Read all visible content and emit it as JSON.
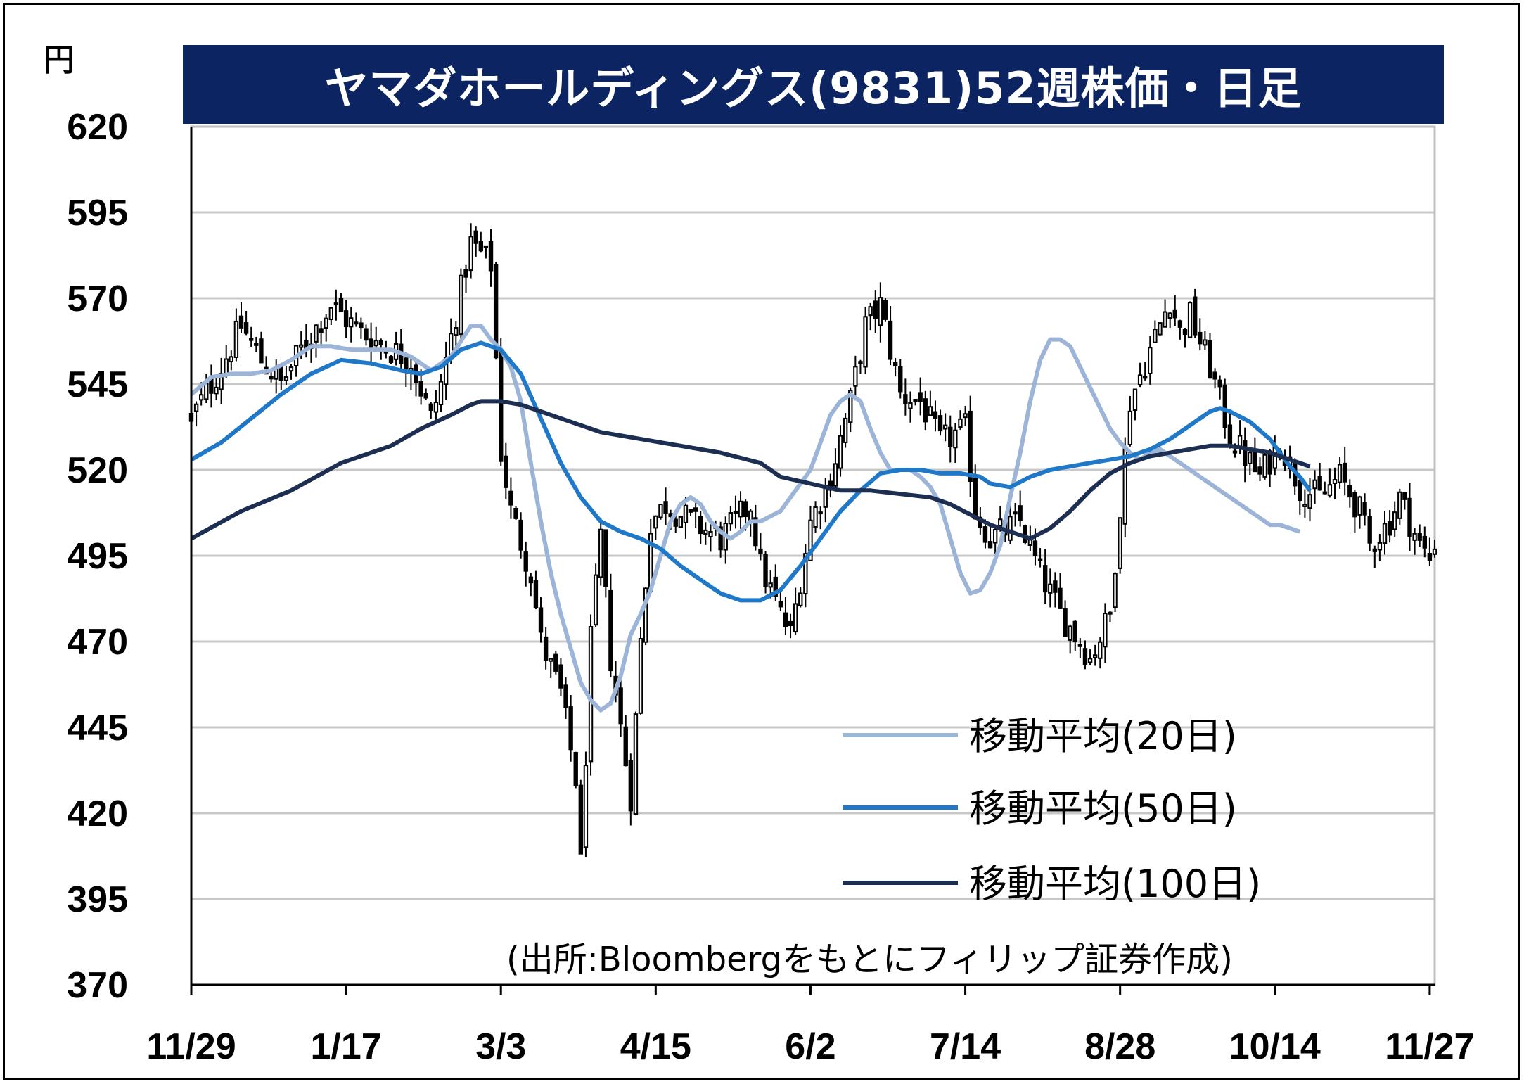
{
  "title": "ヤマダホールディングス(9831)52週株価・日足",
  "unit": "円",
  "source": "(出所:Bloombergをもとにフィリップ証券作成)",
  "colors": {
    "banner": "#0c2461",
    "ma20": "#9bb4d8",
    "ma50": "#1f78c8",
    "ma100": "#1c2e52",
    "candle": "#000000",
    "grid": "#c8c8c8"
  },
  "chart_data": {
    "type": "candlestick",
    "title": "ヤマダホールディングス(9831)52週株価・日足",
    "ylabel": "円",
    "ylim": [
      370,
      620
    ],
    "yticks": [
      620,
      595,
      570,
      545,
      520,
      495,
      470,
      445,
      420,
      395,
      370
    ],
    "xticks": [
      "11/29",
      "1/17",
      "3/3",
      "4/15",
      "6/2",
      "7/14",
      "8/28",
      "10/14",
      "11/27"
    ],
    "trading_days": 250,
    "xtick_days": [
      0,
      31,
      62,
      93,
      124,
      155,
      186,
      217,
      248
    ],
    "legend": [
      {
        "key": "ma20",
        "label": "移動平均(20日)"
      },
      {
        "key": "ma50",
        "label": "移動平均(50日)"
      },
      {
        "key": "ma100",
        "label": "移動平均(100日)"
      }
    ],
    "close_path": [
      [
        0,
        535
      ],
      [
        6,
        550
      ],
      [
        10,
        562
      ],
      [
        14,
        552
      ],
      [
        18,
        545
      ],
      [
        22,
        555
      ],
      [
        28,
        568
      ],
      [
        34,
        560
      ],
      [
        40,
        555
      ],
      [
        44,
        552
      ],
      [
        48,
        535
      ],
      [
        50,
        545
      ],
      [
        56,
        586
      ],
      [
        60,
        580
      ],
      [
        62,
        525
      ],
      [
        64,
        508
      ],
      [
        68,
        490
      ],
      [
        70,
        470
      ],
      [
        74,
        455
      ],
      [
        77,
        430
      ],
      [
        78,
        405
      ],
      [
        80,
        470
      ],
      [
        82,
        500
      ],
      [
        84,
        465
      ],
      [
        88,
        425
      ],
      [
        90,
        470
      ],
      [
        92,
        505
      ],
      [
        95,
        510
      ],
      [
        100,
        505
      ],
      [
        106,
        500
      ],
      [
        112,
        510
      ],
      [
        114,
        492
      ],
      [
        118,
        478
      ],
      [
        120,
        472
      ],
      [
        124,
        505
      ],
      [
        128,
        518
      ],
      [
        132,
        540
      ],
      [
        135,
        562
      ],
      [
        138,
        568
      ],
      [
        142,
        542
      ],
      [
        146,
        540
      ],
      [
        150,
        528
      ],
      [
        155,
        532
      ],
      [
        157,
        508
      ],
      [
        160,
        500
      ],
      [
        166,
        505
      ],
      [
        170,
        490
      ],
      [
        174,
        478
      ],
      [
        178,
        470
      ],
      [
        180,
        465
      ],
      [
        184,
        478
      ],
      [
        186,
        510
      ],
      [
        188,
        540
      ],
      [
        192,
        555
      ],
      [
        196,
        570
      ],
      [
        198,
        560
      ],
      [
        200,
        565
      ],
      [
        204,
        550
      ],
      [
        208,
        530
      ],
      [
        212,
        522
      ],
      [
        214,
        518
      ],
      [
        218,
        528
      ],
      [
        222,
        515
      ],
      [
        226,
        512
      ],
      [
        230,
        518
      ],
      [
        234,
        508
      ],
      [
        236,
        498
      ],
      [
        240,
        505
      ],
      [
        242,
        512
      ],
      [
        246,
        498
      ],
      [
        248,
        494
      ],
      [
        250,
        505
      ]
    ],
    "series": [
      {
        "key": "ma20",
        "name": "移動平均(20日)",
        "points": [
          [
            0,
            542
          ],
          [
            4,
            547
          ],
          [
            8,
            548
          ],
          [
            12,
            548
          ],
          [
            16,
            549
          ],
          [
            20,
            552
          ],
          [
            24,
            556
          ],
          [
            28,
            556
          ],
          [
            32,
            555
          ],
          [
            36,
            555
          ],
          [
            40,
            555
          ],
          [
            44,
            553
          ],
          [
            48,
            549
          ],
          [
            52,
            553
          ],
          [
            56,
            562
          ],
          [
            58,
            562
          ],
          [
            60,
            558
          ],
          [
            62,
            555
          ],
          [
            64,
            550
          ],
          [
            66,
            540
          ],
          [
            68,
            522
          ],
          [
            70,
            505
          ],
          [
            72,
            490
          ],
          [
            74,
            478
          ],
          [
            76,
            468
          ],
          [
            78,
            458
          ],
          [
            80,
            453
          ],
          [
            82,
            450
          ],
          [
            84,
            452
          ],
          [
            86,
            460
          ],
          [
            88,
            472
          ],
          [
            90,
            478
          ],
          [
            92,
            485
          ],
          [
            94,
            495
          ],
          [
            96,
            505
          ],
          [
            98,
            510
          ],
          [
            100,
            512
          ],
          [
            102,
            510
          ],
          [
            104,
            505
          ],
          [
            106,
            502
          ],
          [
            108,
            500
          ],
          [
            110,
            502
          ],
          [
            112,
            505
          ],
          [
            114,
            505
          ],
          [
            118,
            508
          ],
          [
            120,
            512
          ],
          [
            124,
            520
          ],
          [
            126,
            528
          ],
          [
            128,
            536
          ],
          [
            130,
            540
          ],
          [
            132,
            542
          ],
          [
            134,
            540
          ],
          [
            136,
            532
          ],
          [
            138,
            525
          ],
          [
            140,
            520
          ],
          [
            144,
            520
          ],
          [
            146,
            518
          ],
          [
            148,
            515
          ],
          [
            150,
            510
          ],
          [
            152,
            500
          ],
          [
            154,
            490
          ],
          [
            156,
            484
          ],
          [
            158,
            485
          ],
          [
            160,
            490
          ],
          [
            162,
            498
          ],
          [
            164,
            512
          ],
          [
            166,
            525
          ],
          [
            168,
            540
          ],
          [
            170,
            552
          ],
          [
            172,
            558
          ],
          [
            174,
            558
          ],
          [
            176,
            556
          ],
          [
            178,
            550
          ],
          [
            180,
            544
          ],
          [
            182,
            538
          ],
          [
            184,
            532
          ],
          [
            186,
            528
          ],
          [
            188,
            525
          ],
          [
            190,
            523
          ],
          [
            192,
            525
          ],
          [
            194,
            526
          ],
          [
            196,
            524
          ],
          [
            198,
            522
          ],
          [
            200,
            520
          ],
          [
            202,
            518
          ],
          [
            204,
            516
          ],
          [
            206,
            514
          ],
          [
            208,
            512
          ],
          [
            210,
            510
          ],
          [
            212,
            508
          ],
          [
            214,
            506
          ],
          [
            216,
            504
          ],
          [
            218,
            504
          ],
          [
            220,
            503
          ],
          [
            222,
            502
          ]
        ]
      },
      {
        "key": "ma50",
        "name": "移動平均(50日)",
        "points": [
          [
            0,
            523
          ],
          [
            6,
            528
          ],
          [
            12,
            535
          ],
          [
            18,
            542
          ],
          [
            24,
            548
          ],
          [
            30,
            552
          ],
          [
            36,
            551
          ],
          [
            42,
            549
          ],
          [
            46,
            548
          ],
          [
            50,
            550
          ],
          [
            54,
            555
          ],
          [
            58,
            557
          ],
          [
            62,
            555
          ],
          [
            66,
            548
          ],
          [
            70,
            535
          ],
          [
            74,
            522
          ],
          [
            78,
            512
          ],
          [
            82,
            505
          ],
          [
            86,
            502
          ],
          [
            90,
            500
          ],
          [
            94,
            497
          ],
          [
            98,
            492
          ],
          [
            102,
            488
          ],
          [
            106,
            484
          ],
          [
            110,
            482
          ],
          [
            114,
            482
          ],
          [
            118,
            485
          ],
          [
            122,
            492
          ],
          [
            126,
            500
          ],
          [
            130,
            508
          ],
          [
            134,
            514
          ],
          [
            138,
            519
          ],
          [
            142,
            520
          ],
          [
            146,
            520
          ],
          [
            150,
            519
          ],
          [
            154,
            519
          ],
          [
            158,
            518
          ],
          [
            160,
            516
          ],
          [
            164,
            515
          ],
          [
            168,
            518
          ],
          [
            172,
            520
          ],
          [
            176,
            521
          ],
          [
            180,
            522
          ],
          [
            184,
            523
          ],
          [
            188,
            524
          ],
          [
            192,
            526
          ],
          [
            196,
            529
          ],
          [
            200,
            533
          ],
          [
            204,
            537
          ],
          [
            206,
            538
          ],
          [
            208,
            537
          ],
          [
            212,
            534
          ],
          [
            216,
            529
          ],
          [
            218,
            525
          ],
          [
            220,
            521
          ],
          [
            222,
            518
          ],
          [
            224,
            514
          ]
        ]
      },
      {
        "key": "ma100",
        "name": "移動平均(100日)",
        "points": [
          [
            0,
            500
          ],
          [
            10,
            508
          ],
          [
            20,
            514
          ],
          [
            30,
            522
          ],
          [
            40,
            527
          ],
          [
            46,
            532
          ],
          [
            52,
            536
          ],
          [
            56,
            539
          ],
          [
            58,
            540
          ],
          [
            62,
            540
          ],
          [
            66,
            539
          ],
          [
            70,
            537
          ],
          [
            76,
            534
          ],
          [
            82,
            531
          ],
          [
            90,
            529
          ],
          [
            98,
            527
          ],
          [
            106,
            525
          ],
          [
            114,
            522
          ],
          [
            118,
            518
          ],
          [
            124,
            516
          ],
          [
            130,
            514
          ],
          [
            136,
            514
          ],
          [
            142,
            513
          ],
          [
            148,
            512
          ],
          [
            152,
            510
          ],
          [
            156,
            507
          ],
          [
            160,
            504
          ],
          [
            164,
            502
          ],
          [
            168,
            500
          ],
          [
            172,
            503
          ],
          [
            176,
            508
          ],
          [
            180,
            514
          ],
          [
            184,
            519
          ],
          [
            188,
            522
          ],
          [
            192,
            524
          ],
          [
            196,
            525
          ],
          [
            200,
            526
          ],
          [
            204,
            527
          ],
          [
            208,
            527
          ],
          [
            212,
            526
          ],
          [
            216,
            525
          ],
          [
            220,
            523
          ],
          [
            224,
            521
          ]
        ]
      }
    ]
  }
}
